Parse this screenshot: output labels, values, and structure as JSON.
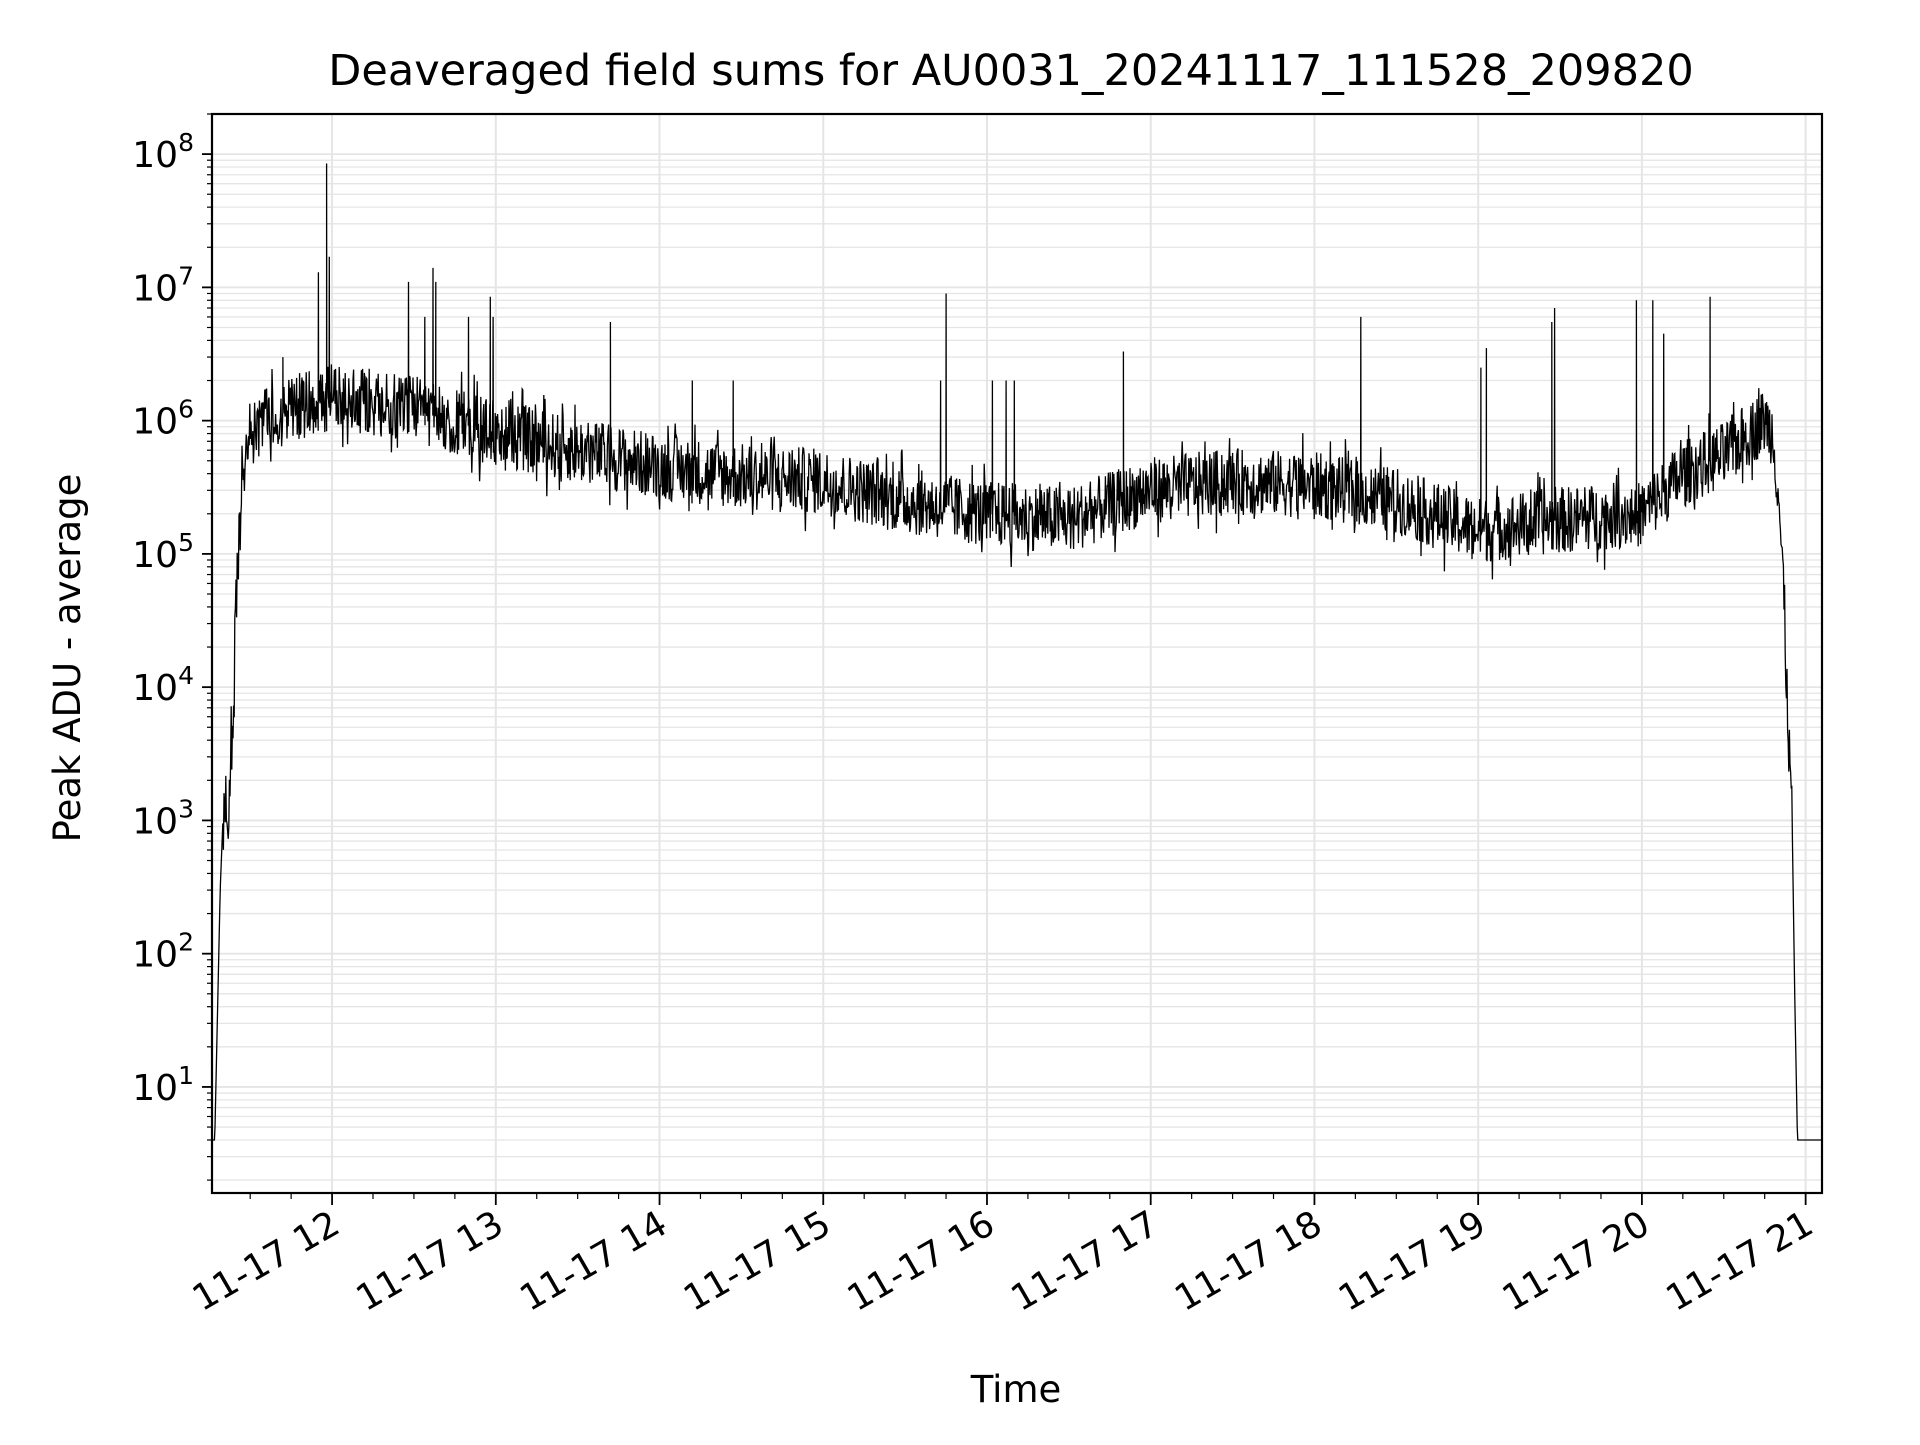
{
  "chart_data": {
    "type": "line",
    "title": "Deaveraged field sums for AU0031_20241117_111528_209820",
    "xlabel": "Time",
    "ylabel": "Peak ADU - average",
    "y_scale": "log",
    "x_range": [
      "2024-11-17 11:16",
      "2024-11-17 21:06"
    ],
    "y_range": [
      1.6,
      200000000.0
    ],
    "grid": "on (major and minor)",
    "colors": {
      "line": "#000000",
      "grid": "#e5e5e5",
      "axes": "#000000",
      "background": "#ffffff"
    },
    "x_ticks": [
      {
        "t": "2024-11-17 12:00",
        "label": "11-17 12"
      },
      {
        "t": "2024-11-17 13:00",
        "label": "11-17 13"
      },
      {
        "t": "2024-11-17 14:00",
        "label": "11-17 14"
      },
      {
        "t": "2024-11-17 15:00",
        "label": "11-17 15"
      },
      {
        "t": "2024-11-17 16:00",
        "label": "11-17 16"
      },
      {
        "t": "2024-11-17 17:00",
        "label": "11-17 17"
      },
      {
        "t": "2024-11-17 18:00",
        "label": "11-17 18"
      },
      {
        "t": "2024-11-17 19:00",
        "label": "11-17 19"
      },
      {
        "t": "2024-11-17 20:00",
        "label": "11-17 20"
      },
      {
        "t": "2024-11-17 21:00",
        "label": "11-17 21"
      }
    ],
    "y_ticks": [
      {
        "value": 10,
        "base": "10",
        "exp": "1"
      },
      {
        "value": 100,
        "base": "10",
        "exp": "2"
      },
      {
        "value": 1000,
        "base": "10",
        "exp": "3"
      },
      {
        "value": 10000,
        "base": "10",
        "exp": "4"
      },
      {
        "value": 100000,
        "base": "10",
        "exp": "5"
      },
      {
        "value": 1000000,
        "base": "10",
        "exp": "6"
      },
      {
        "value": 10000000,
        "base": "10",
        "exp": "7"
      },
      {
        "value": 100000000,
        "base": "10",
        "exp": "8"
      }
    ],
    "series": [
      {
        "envelope": [
          [
            "2024-11-17 11:16",
            4
          ],
          [
            "2024-11-17 11:17",
            4
          ],
          [
            "2024-11-17 11:19",
            300
          ],
          [
            "2024-11-17 11:20",
            1000
          ],
          [
            "2024-11-17 11:21",
            1300
          ],
          [
            "2024-11-17 11:22",
            700
          ],
          [
            "2024-11-17 11:23",
            3000
          ],
          [
            "2024-11-17 11:24",
            10000
          ],
          [
            "2024-11-17 11:25",
            60000
          ],
          [
            "2024-11-17 11:26",
            150000
          ],
          [
            "2024-11-17 11:28",
            500000
          ],
          [
            "2024-11-17 11:30",
            800000
          ],
          [
            "2024-11-17 11:35",
            1000000
          ],
          [
            "2024-11-17 11:45",
            1200000
          ],
          [
            "2024-11-17 12:00",
            1500000
          ],
          [
            "2024-11-17 12:30",
            1200000
          ],
          [
            "2024-11-17 13:00",
            800000
          ],
          [
            "2024-11-17 13:30",
            600000
          ],
          [
            "2024-11-17 14:00",
            450000
          ],
          [
            "2024-11-17 14:30",
            380000
          ],
          [
            "2024-11-17 15:00",
            350000
          ],
          [
            "2024-11-17 15:30",
            250000
          ],
          [
            "2024-11-17 16:00",
            200000
          ],
          [
            "2024-11-17 16:30",
            180000
          ],
          [
            "2024-11-17 17:00",
            300000
          ],
          [
            "2024-11-17 17:30",
            350000
          ],
          [
            "2024-11-17 18:00",
            330000
          ],
          [
            "2024-11-17 18:30",
            250000
          ],
          [
            "2024-11-17 19:00",
            150000
          ],
          [
            "2024-11-17 19:30",
            180000
          ],
          [
            "2024-11-17 20:00",
            200000
          ],
          [
            "2024-11-17 20:15",
            400000
          ],
          [
            "2024-11-17 20:30",
            550000
          ],
          [
            "2024-11-17 20:45",
            1000000
          ],
          [
            "2024-11-17 20:48",
            800000
          ],
          [
            "2024-11-17 20:50",
            300000
          ],
          [
            "2024-11-17 20:52",
            50000
          ],
          [
            "2024-11-17 20:54",
            3000
          ],
          [
            "2024-11-17 20:55",
            1200
          ],
          [
            "2024-11-17 20:56",
            50
          ],
          [
            "2024-11-17 20:57",
            4
          ],
          [
            "2024-11-17 21:06",
            4
          ]
        ],
        "noise_log10_amplitude": 0.25,
        "spikes": [
          [
            "2024-11-17 11:42",
            3000000
          ],
          [
            "2024-11-17 11:55",
            13000000
          ],
          [
            "2024-11-17 11:58",
            85000000
          ],
          [
            "2024-11-17 11:59",
            17000000
          ],
          [
            "2024-11-17 12:28",
            11000000
          ],
          [
            "2024-11-17 12:34",
            6000000
          ],
          [
            "2024-11-17 12:37",
            14000000
          ],
          [
            "2024-11-17 12:38",
            11000000
          ],
          [
            "2024-11-17 12:50",
            6000000
          ],
          [
            "2024-11-17 12:58",
            8500000
          ],
          [
            "2024-11-17 12:59",
            6000000
          ],
          [
            "2024-11-17 13:42",
            5500000
          ],
          [
            "2024-11-17 14:12",
            2000000
          ],
          [
            "2024-11-17 14:27",
            2000000
          ],
          [
            "2024-11-17 15:43",
            2000000
          ],
          [
            "2024-11-17 15:45",
            9000000
          ],
          [
            "2024-11-17 16:02",
            2000000
          ],
          [
            "2024-11-17 16:07",
            2000000
          ],
          [
            "2024-11-17 16:10",
            2000000
          ],
          [
            "2024-11-17 16:50",
            3300000
          ],
          [
            "2024-11-17 18:17",
            6000000
          ],
          [
            "2024-11-17 19:01",
            2500000
          ],
          [
            "2024-11-17 19:03",
            3500000
          ],
          [
            "2024-11-17 19:27",
            5500000
          ],
          [
            "2024-11-17 19:28",
            7000000
          ],
          [
            "2024-11-17 19:58",
            8000000
          ],
          [
            "2024-11-17 20:04",
            8000000
          ],
          [
            "2024-11-17 20:08",
            4500000
          ],
          [
            "2024-11-17 20:25",
            8500000
          ]
        ]
      }
    ]
  }
}
